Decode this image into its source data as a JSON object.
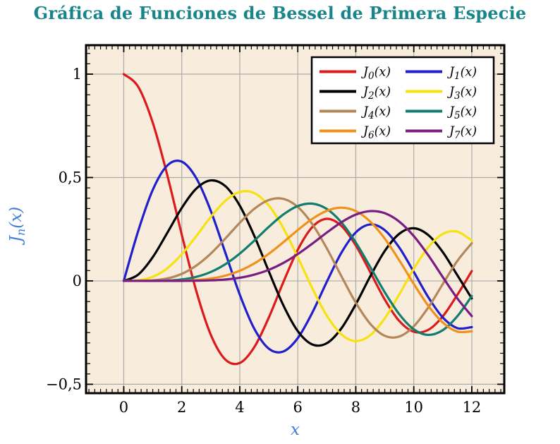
{
  "figure": {
    "title": "Gráfica de Funciones de Bessel de Primera Especie",
    "title_color": "#17858a",
    "background": "#ffffff"
  },
  "chart_data": {
    "type": "line",
    "title": "Gráfica de Funciones de Bessel de Primera Especie",
    "xlabel": "x",
    "ylabel": "Jn(x)",
    "ylabel_parts": {
      "base": "J",
      "sub": "n",
      "args": "(x)"
    },
    "xlim": [
      -1.3,
      13.12
    ],
    "ylim": [
      -0.543,
      1.14
    ],
    "xticks": [
      0,
      2,
      4,
      6,
      8,
      10,
      12
    ],
    "xtick_labels": [
      "0",
      "2",
      "4",
      "6",
      "8",
      "10",
      "12"
    ],
    "yticks": [
      1,
      0.5,
      0,
      -0.5
    ],
    "ytick_labels": [
      "1",
      "0,5",
      "0",
      "−0,5"
    ],
    "x_minor_step": 0.2,
    "y_minor_step": 0.05,
    "grid": "major-only",
    "grid_color": "#ababab",
    "plot_background": "#f8ecdc",
    "frame_color": "#000000",
    "tick_color": "#000000",
    "tick_label_color": "#000000",
    "axis_label_color": "#3f7fd6",
    "legend": {
      "position": "top-right",
      "background": "#ffffff",
      "border_color": "#000000",
      "columns": 2
    },
    "x": [
      0,
      0.5,
      1,
      1.5,
      2,
      2.5,
      3,
      3.5,
      4,
      4.5,
      5,
      5.5,
      6,
      6.5,
      7,
      7.5,
      8,
      8.5,
      9,
      9.5,
      10,
      10.5,
      11,
      11.5,
      12
    ],
    "series": [
      {
        "name": "J0(x)",
        "label_parts": {
          "base": "J",
          "sub": "0",
          "args": "(x)"
        },
        "color": "#dc1a1c",
        "values": [
          1,
          0.9385,
          0.7652,
          0.5118,
          0.2239,
          -0.0484,
          -0.2601,
          -0.3801,
          -0.3971,
          -0.3205,
          -0.1776,
          -0.0068,
          0.1506,
          0.2601,
          0.3001,
          0.2663,
          0.1717,
          0.0419,
          -0.0903,
          -0.1939,
          -0.2459,
          -0.2366,
          -0.1712,
          -0.0677,
          0.0477
        ]
      },
      {
        "name": "J1(x)",
        "label_parts": {
          "base": "J",
          "sub": "1",
          "args": "(x)"
        },
        "color": "#1f1fcc",
        "values": [
          0,
          0.2423,
          0.4401,
          0.5579,
          0.5767,
          0.4971,
          0.3391,
          0.1374,
          -0.066,
          -0.2311,
          -0.3276,
          -0.3414,
          -0.2767,
          -0.1538,
          -0.0047,
          0.1352,
          0.2346,
          0.2731,
          0.2453,
          0.1613,
          0.0435,
          -0.0789,
          -0.1768,
          -0.2284,
          -0.2234
        ]
      },
      {
        "name": "J2(x)",
        "label_parts": {
          "base": "J",
          "sub": "2",
          "args": "(x)"
        },
        "color": "#000000",
        "values": [
          0,
          0.0306,
          0.1149,
          0.2321,
          0.3528,
          0.4461,
          0.4861,
          0.4586,
          0.3641,
          0.2178,
          0.0466,
          -0.1173,
          -0.2429,
          -0.3074,
          -0.3014,
          -0.2302,
          -0.113,
          0.0223,
          0.1448,
          0.2279,
          0.2546,
          0.2216,
          0.139,
          0.0279,
          -0.0849
        ]
      },
      {
        "name": "J3(x)",
        "label_parts": {
          "base": "J",
          "sub": "3",
          "args": "(x)"
        },
        "color": "#f7e211",
        "values": [
          0,
          0.0026,
          0.0196,
          0.061,
          0.1289,
          0.2166,
          0.3091,
          0.3868,
          0.4302,
          0.4247,
          0.3648,
          0.2561,
          0.1148,
          -0.0353,
          -0.1676,
          -0.2581,
          -0.2911,
          -0.2626,
          -0.1809,
          -0.0653,
          0.0584,
          0.1633,
          0.2273,
          0.2381,
          0.1951
        ]
      },
      {
        "name": "J4(x)",
        "label_parts": {
          "base": "J",
          "sub": "4",
          "args": "(x)"
        },
        "color": "#b3875a",
        "values": [
          0,
          0.0002,
          0.0025,
          0.0118,
          0.034,
          0.0738,
          0.132,
          0.2044,
          0.2811,
          0.3484,
          0.3912,
          0.3967,
          0.3576,
          0.2748,
          0.1578,
          0.0238,
          -0.1054,
          -0.2077,
          -0.2655,
          -0.2691,
          -0.2196,
          -0.1283,
          -0.015,
          0.0963,
          0.1825
        ]
      },
      {
        "name": "J5(x)",
        "label_parts": {
          "base": "J",
          "sub": "5",
          "args": "(x)"
        },
        "color": "#127c6f",
        "values": [
          0,
          0,
          0.0002,
          0.0018,
          0.007,
          0.0195,
          0.043,
          0.0804,
          0.1321,
          0.1947,
          0.2611,
          0.3209,
          0.3621,
          0.3736,
          0.3479,
          0.2835,
          0.1858,
          0.0671,
          -0.055,
          -0.1613,
          -0.2341,
          -0.2611,
          -0.2383,
          -0.1711,
          -0.0735
        ]
      },
      {
        "name": "J6(x)",
        "label_parts": {
          "base": "J",
          "sub": "6",
          "args": "(x)"
        },
        "color": "#f0911c",
        "values": [
          0,
          0,
          0,
          0.0002,
          0.0012,
          0.0042,
          0.0114,
          0.0254,
          0.0491,
          0.0843,
          0.131,
          0.1868,
          0.2458,
          0.2999,
          0.3392,
          0.3541,
          0.3376,
          0.2866,
          0.2043,
          0.0994,
          -0.0145,
          -0.1203,
          -0.2016,
          -0.245,
          -0.2437
        ]
      },
      {
        "name": "J7(x)",
        "label_parts": {
          "base": "J",
          "sub": "7",
          "args": "(x)"
        },
        "color": "#791d82",
        "values": [
          0,
          0,
          0,
          0,
          0.0002,
          0.0008,
          0.0025,
          0.0067,
          0.0152,
          0.0304,
          0.0534,
          0.0866,
          0.1296,
          0.1801,
          0.2336,
          0.2832,
          0.3206,
          0.3376,
          0.3275,
          0.2867,
          0.2167,
          0.1236,
          0.0184,
          -0.0845,
          -0.1703
        ]
      }
    ]
  }
}
